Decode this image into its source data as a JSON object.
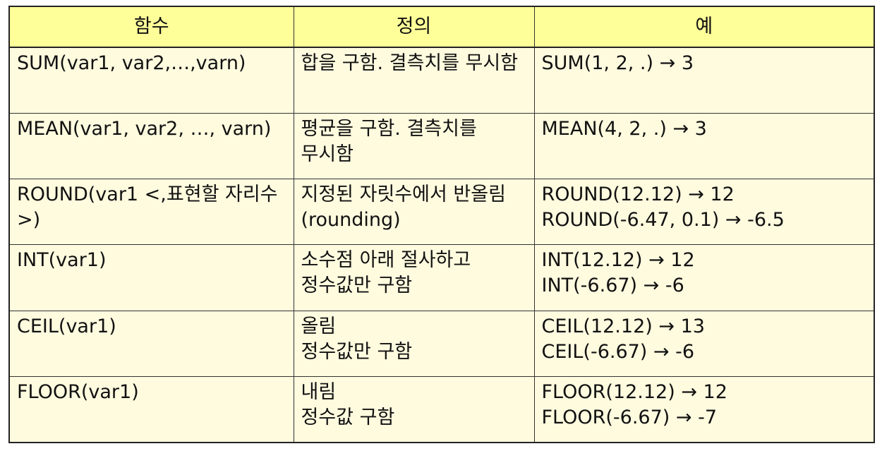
{
  "table": {
    "headers": [
      "함수",
      "정의",
      "예"
    ],
    "rows": [
      {
        "function": "SUM(var1, var2,…,varn)",
        "definition": "합을 구함. 결측치를 무시함",
        "examples": [
          "SUM(1, 2, .) → 3"
        ]
      },
      {
        "function": "MEAN(var1, var2, …, varn)",
        "definition": "평균을 구함. 결측치를 무시함",
        "examples": [
          "MEAN(4, 2, .) → 3"
        ]
      },
      {
        "function": "ROUND(var1 <,표현할 자리수>)",
        "definition": "지정된 자릿수에서 반올림(rounding)",
        "examples": [
          "ROUND(12.12) → 12",
          "ROUND(-6.47, 0.1) → -6.5"
        ]
      },
      {
        "function": "INT(var1)",
        "definition": "소수점 아래 절사하고 정수값만 구함",
        "examples": [
          "INT(12.12) → 12",
          "INT(-6.67) → -6"
        ]
      },
      {
        "function": "CEIL(var1)",
        "definition_lines": [
          "올림",
          "정수값만 구함"
        ],
        "examples": [
          "CEIL(12.12) → 13",
          "CEIL(-6.67) → -6"
        ]
      },
      {
        "function": "FLOOR(var1)",
        "definition_lines": [
          "내림",
          "정수값 구함"
        ],
        "examples": [
          "FLOOR(12.12) → 12",
          "FLOOR(-6.67) → -7"
        ]
      }
    ]
  }
}
